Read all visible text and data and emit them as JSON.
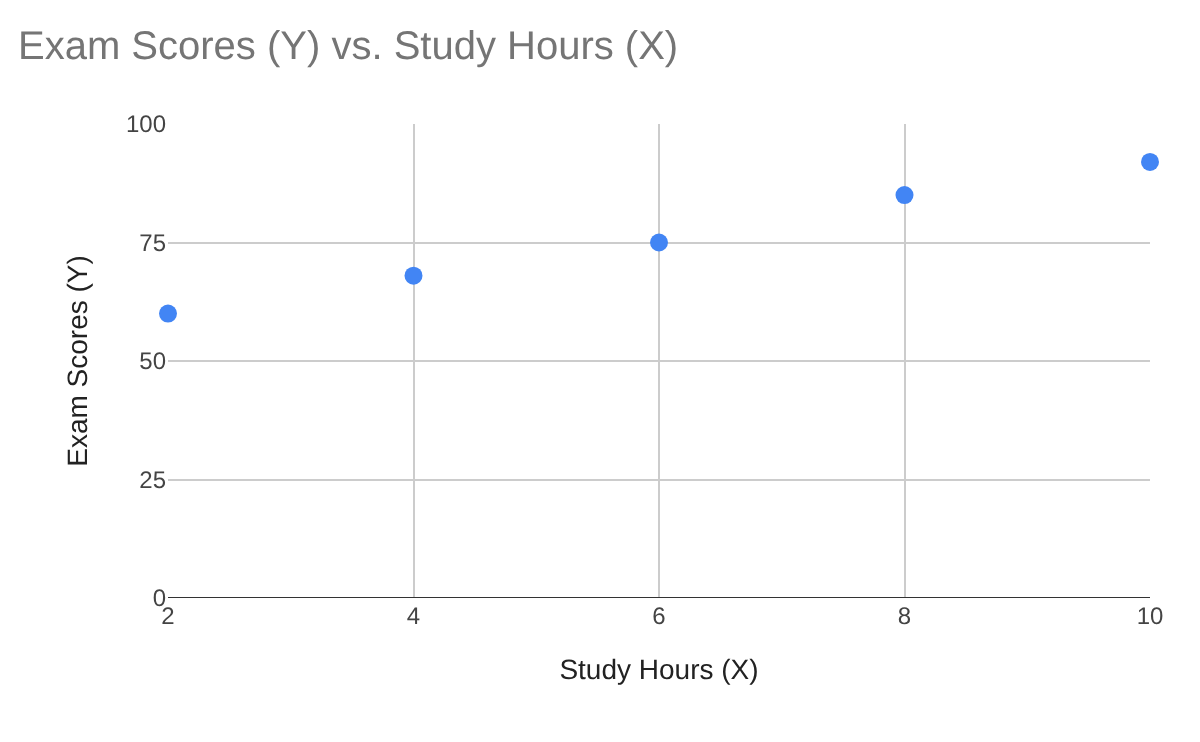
{
  "chart_data": {
    "type": "scatter",
    "title": "Exam Scores (Y) vs. Study Hours (X)",
    "xlabel": "Study Hours (X)",
    "ylabel": "Exam Scores (Y)",
    "x": [
      2,
      4,
      6,
      8,
      10
    ],
    "series": [
      {
        "color": "#4285f4",
        "values": [
          60,
          68,
          75,
          85,
          92
        ]
      }
    ],
    "xlim": [
      2,
      10
    ],
    "xticks": [
      2,
      4,
      6,
      8,
      10
    ],
    "ylim": [
      0,
      100
    ],
    "yticks": [
      0,
      25,
      50,
      75,
      100
    ],
    "grid": true,
    "marker": "circle",
    "legend": false
  }
}
